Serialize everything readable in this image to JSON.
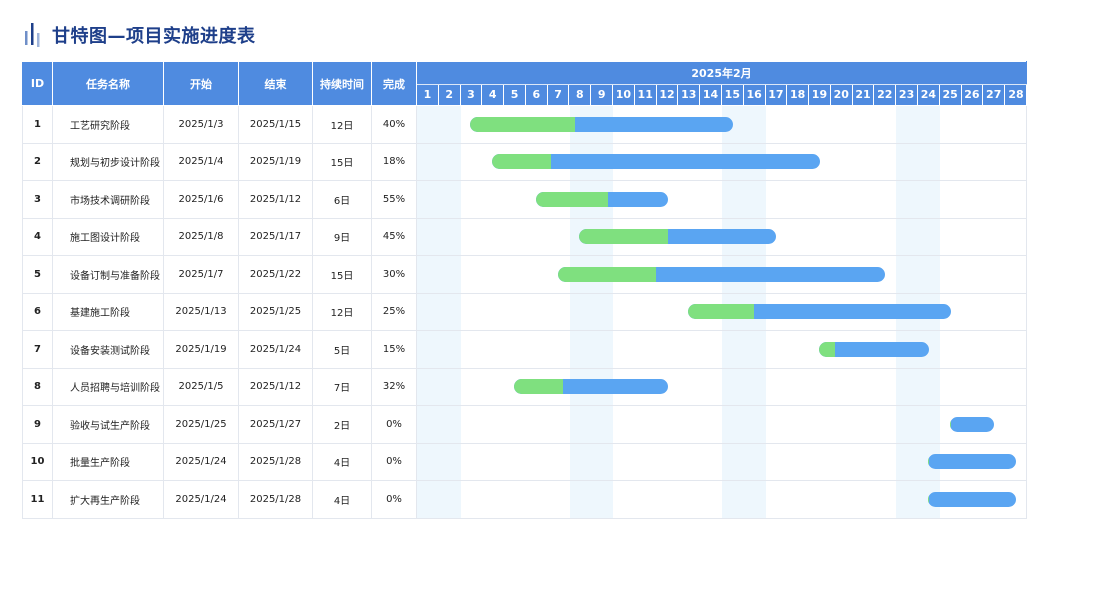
{
  "title": "甘特图—项目实施进度表",
  "colors": {
    "header": "#4f8be0",
    "done": "#7fe07f",
    "remaining": "#5aa5f2",
    "weekend": "#eef7fd",
    "title": "#1e3f8a"
  },
  "columns": {
    "id": "ID",
    "name": "任务名称",
    "start": "开始",
    "end": "结束",
    "duration": "持续时间",
    "complete": "完成"
  },
  "chart_data": {
    "type": "gantt",
    "month_label": "2025年2月",
    "days": [
      "1",
      "2",
      "3",
      "4",
      "5",
      "6",
      "7",
      "8",
      "9",
      "10",
      "11",
      "12",
      "13",
      "14",
      "15",
      "16",
      "17",
      "18",
      "19",
      "20",
      "21",
      "22",
      "23",
      "24",
      "25",
      "26",
      "27",
      "28"
    ],
    "highlight_days": [
      1,
      2,
      8,
      9,
      15,
      16,
      23,
      24
    ],
    "tasks": [
      {
        "id": "1",
        "name": "工艺研究阶段",
        "start": "2025/1/3",
        "end": "2025/1/15",
        "duration": "12日",
        "complete": "40%",
        "bar_start": 3,
        "bar_end": 15,
        "progress": 0.4
      },
      {
        "id": "2",
        "name": "规划与初步设计阶段",
        "start": "2025/1/4",
        "end": "2025/1/19",
        "duration": "15日",
        "complete": "18%",
        "bar_start": 4,
        "bar_end": 19,
        "progress": 0.18
      },
      {
        "id": "3",
        "name": "市场技术调研阶段",
        "start": "2025/1/6",
        "end": "2025/1/12",
        "duration": "6日",
        "complete": "55%",
        "bar_start": 6,
        "bar_end": 12,
        "progress": 0.55
      },
      {
        "id": "4",
        "name": "施工图设计阶段",
        "start": "2025/1/8",
        "end": "2025/1/17",
        "duration": "9日",
        "complete": "45%",
        "bar_start": 8,
        "bar_end": 17,
        "progress": 0.45
      },
      {
        "id": "5",
        "name": "设备订制与准备阶段",
        "start": "2025/1/7",
        "end": "2025/1/22",
        "duration": "15日",
        "complete": "30%",
        "bar_start": 7,
        "bar_end": 22,
        "progress": 0.3
      },
      {
        "id": "6",
        "name": "基建施工阶段",
        "start": "2025/1/13",
        "end": "2025/1/25",
        "duration": "12日",
        "complete": "25%",
        "bar_start": 13,
        "bar_end": 25,
        "progress": 0.25
      },
      {
        "id": "7",
        "name": "设备安装测试阶段",
        "start": "2025/1/19",
        "end": "2025/1/24",
        "duration": "5日",
        "complete": "15%",
        "bar_start": 19,
        "bar_end": 24,
        "progress": 0.15
      },
      {
        "id": "8",
        "name": "人员招聘与培训阶段",
        "start": "2025/1/5",
        "end": "2025/1/12",
        "duration": "7日",
        "complete": "32%",
        "bar_start": 5,
        "bar_end": 12,
        "progress": 0.32
      },
      {
        "id": "9",
        "name": "验收与试生产阶段",
        "start": "2025/1/25",
        "end": "2025/1/27",
        "duration": "2日",
        "complete": "0%",
        "bar_start": 25,
        "bar_end": 27,
        "progress": 0
      },
      {
        "id": "10",
        "name": "批量生产阶段",
        "start": "2025/1/24",
        "end": "2025/1/28",
        "duration": "4日",
        "complete": "0%",
        "bar_start": 24,
        "bar_end": 28,
        "progress": 0
      },
      {
        "id": "11",
        "name": "扩大再生产阶段",
        "start": "2025/1/24",
        "end": "2025/1/28",
        "duration": "4日",
        "complete": "0%",
        "bar_start": 24,
        "bar_end": 28,
        "progress": 0
      }
    ]
  }
}
